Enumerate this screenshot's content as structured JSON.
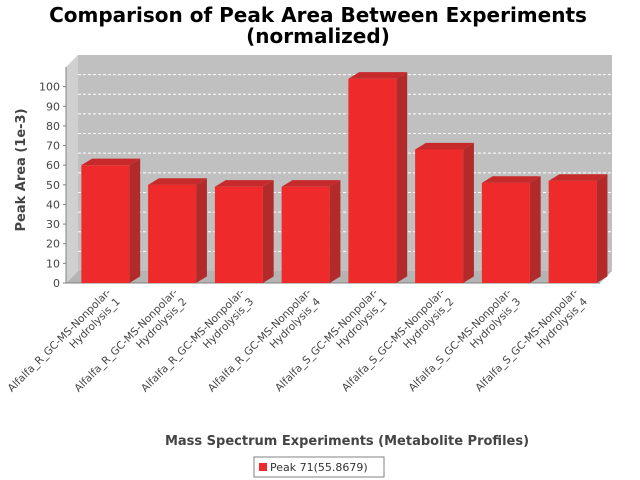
{
  "chart_data": {
    "type": "bar",
    "title_line1": "Comparison of Peak Area Between Experiments",
    "title_line2": "(normalized)",
    "xlabel": "Mass Spectrum Experiments (Metabolite Profiles)",
    "ylabel": "Peak Area (1e-3)",
    "ylim": [
      0,
      110
    ],
    "yticks": [
      0,
      10,
      20,
      30,
      40,
      50,
      60,
      70,
      80,
      90,
      100
    ],
    "grid": true,
    "categories": [
      [
        "Alfalfa_R_GC-MS-Nonpolar-",
        "Hydrolysis_1"
      ],
      [
        "Alfalfa_R_GC-MS-Nonpolar-",
        "Hydrolysis_2"
      ],
      [
        "Alfalfa_R_GC-MS-Nonpolar-",
        "Hydrolysis_3"
      ],
      [
        "Alfalfa_R_GC-MS-Nonpolar-",
        "Hydrolysis_4"
      ],
      [
        "Alfalfa_S_GC-MS-Nonpolar-",
        "Hydrolysis_1"
      ],
      [
        "Alfalfa_S_GC-MS-Nonpolar-",
        "Hydrolysis_2"
      ],
      [
        "Alfalfa_S_GC-MS-Nonpolar-",
        "Hydrolysis_3"
      ],
      [
        "Alfalfa_S_GC-MS-Nonpolar-",
        "Hydrolysis_4"
      ]
    ],
    "series": [
      {
        "name": "Peak 71(55.8679)",
        "color": "#ee2a2a",
        "values": [
          60,
          50,
          49,
          49,
          104,
          68,
          51,
          52
        ]
      }
    ],
    "legend_position": "bottom",
    "plot_background": "#c0c0c0"
  }
}
